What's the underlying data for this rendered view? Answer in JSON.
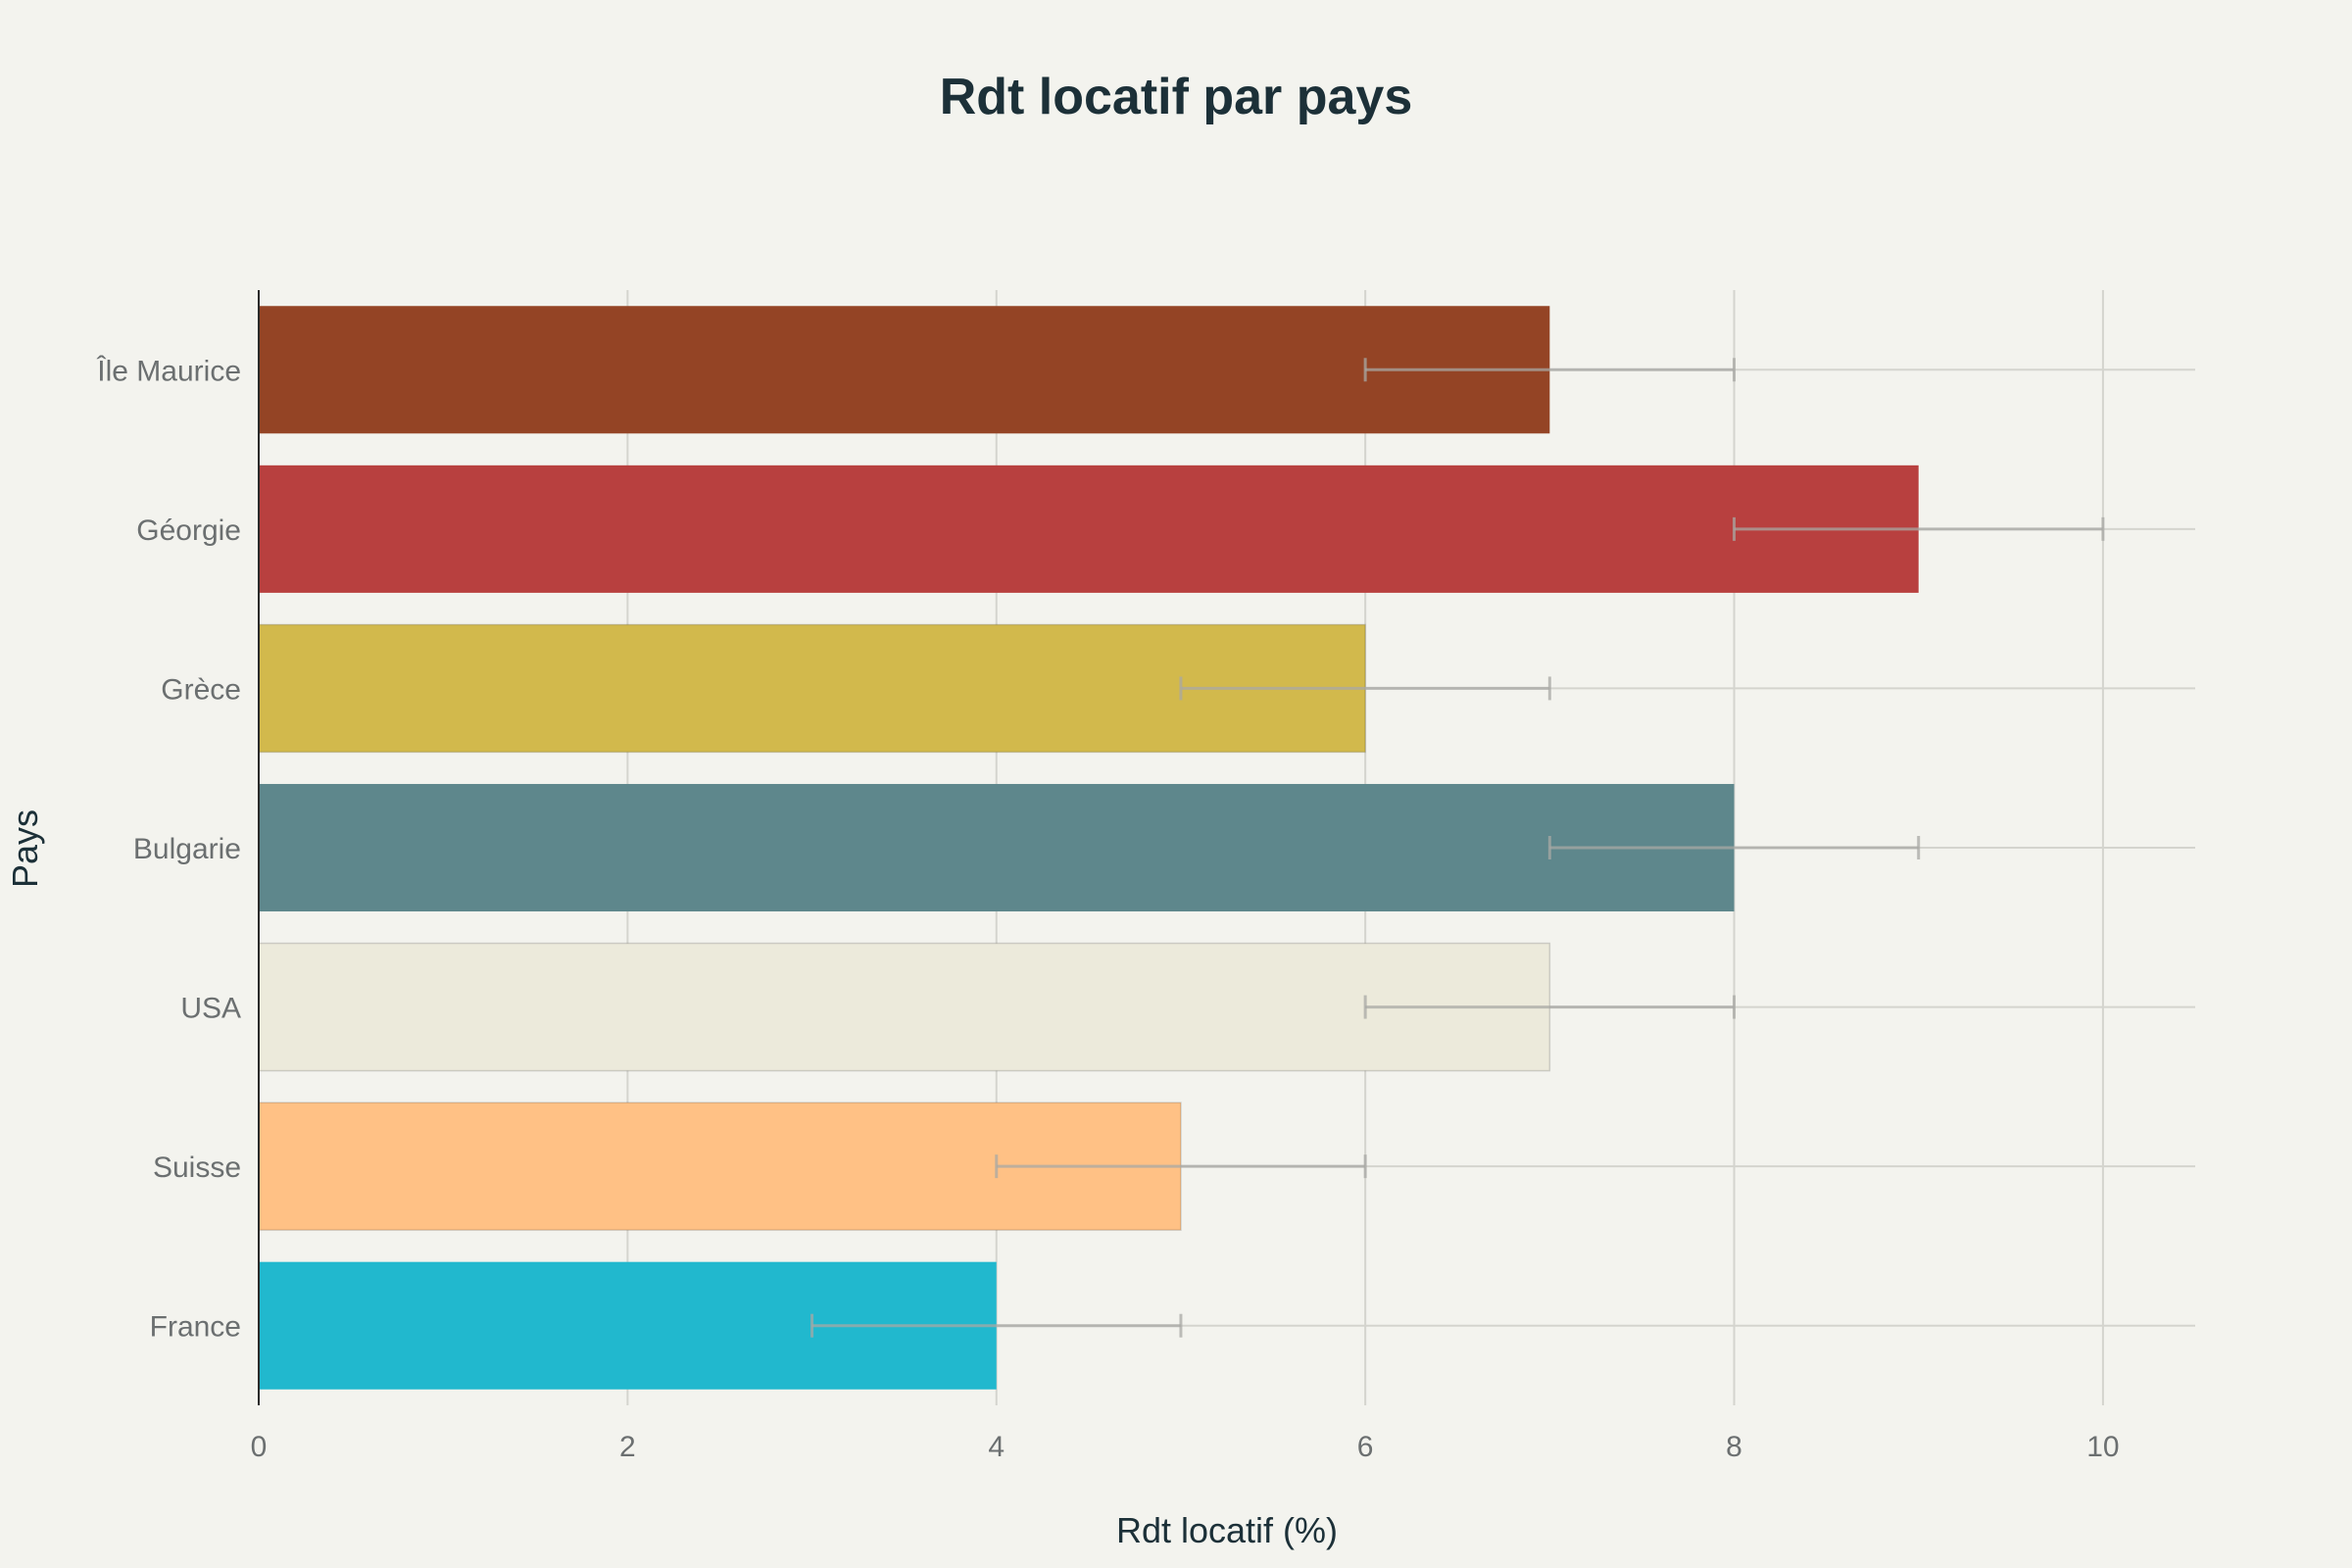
{
  "chart_data": {
    "type": "bar",
    "orientation": "horizontal",
    "title": "Rdt locatif par pays",
    "xlabel": "Rdt locatif (%)",
    "ylabel": "Pays",
    "xlim": [
      0,
      10.5
    ],
    "xticks": [
      0,
      2,
      4,
      6,
      8,
      10
    ],
    "grid": true,
    "categories": [
      "France",
      "Suisse",
      "USA",
      "Bulgarie",
      "Grèce",
      "Géorgie",
      "Île Maurice"
    ],
    "values": [
      4,
      5,
      7,
      8,
      6,
      9,
      7
    ],
    "error_low": [
      3,
      4,
      6,
      7,
      5,
      8,
      6
    ],
    "error_high": [
      5,
      6,
      8,
      9,
      7,
      10,
      8
    ],
    "colors": [
      "#21b8ce",
      "#ffc185",
      "#eceadb",
      "#5e878c",
      "#d2b94c",
      "#b8403f",
      "#944425"
    ]
  }
}
